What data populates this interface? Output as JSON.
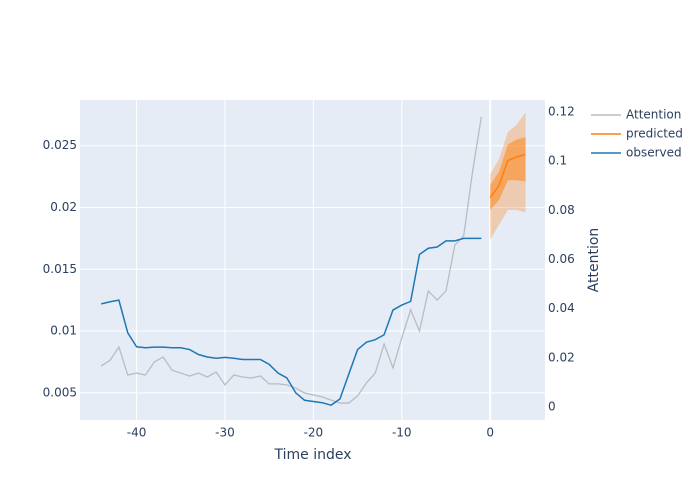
{
  "chart_data": {
    "type": "line",
    "xlabel": "Time index",
    "y2label": "Attention",
    "xlim": [
      -46.4,
      6.2
    ],
    "xticks": [
      -40,
      -30,
      -20,
      -10,
      0
    ],
    "ylim": [
      0.0028,
      0.0287
    ],
    "yticks": [
      0.005,
      0.01,
      0.015,
      0.02,
      0.025
    ],
    "y2lim": [
      -0.0053,
      0.1249
    ],
    "y2ticks": [
      0,
      0.02,
      0.04,
      0.06,
      0.08,
      0.1,
      0.12
    ],
    "grid": true,
    "legend": "outside-top-right",
    "series": [
      {
        "name": "Attention",
        "color": "#bbbcc2",
        "axis": "y2",
        "x": [
          -44,
          -43,
          -42,
          -41,
          -40,
          -39,
          -38,
          -37,
          -36,
          -35,
          -34,
          -33,
          -32,
          -31,
          -30,
          -29,
          -28,
          -27,
          -26,
          -25,
          -24,
          -23,
          -22,
          -21,
          -20,
          -19,
          -18,
          -17,
          -16,
          -15,
          -14,
          -13,
          -12,
          -11,
          -10,
          -9,
          -8,
          -7,
          -6,
          -5,
          -4,
          -3,
          -2,
          -1
        ],
        "values": [
          0.0167,
          0.019,
          0.0244,
          0.013,
          0.0138,
          0.013,
          0.0183,
          0.0203,
          0.015,
          0.0138,
          0.0126,
          0.0138,
          0.0122,
          0.0142,
          0.009,
          0.013,
          0.0122,
          0.0118,
          0.0126,
          0.0094,
          0.0094,
          0.009,
          0.0077,
          0.0057,
          0.0049,
          0.0041,
          0.0028,
          0.0016,
          0.0016,
          0.0045,
          0.0098,
          0.0138,
          0.0256,
          0.0159,
          0.0281,
          0.0395,
          0.0309,
          0.0472,
          0.0435,
          0.0472,
          0.0659,
          0.0696,
          0.0956,
          0.118
        ]
      },
      {
        "name": "predicted",
        "color": "#ff7f0e",
        "axis": "y",
        "x": [
          0,
          1,
          2,
          3,
          4
        ],
        "values": [
          0.0208,
          0.0218,
          0.0238,
          0.0241,
          0.0243
        ],
        "bands": [
          {
            "lower": [
              0.0174,
              0.0186,
              0.0198,
              0.0198,
              0.0196
            ],
            "upper": [
              0.0227,
              0.0239,
              0.0261,
              0.0267,
              0.0277
            ],
            "opacity": 0.3
          },
          {
            "lower": [
              0.0198,
              0.0206,
              0.0222,
              0.0222,
              0.0221
            ],
            "upper": [
              0.0218,
              0.0229,
              0.0251,
              0.0255,
              0.0257
            ],
            "opacity": 0.5
          }
        ]
      },
      {
        "name": "observed",
        "color": "#1f77b4",
        "axis": "y",
        "x": [
          -44,
          -43,
          -42,
          -41,
          -40,
          -39,
          -38,
          -37,
          -36,
          -35,
          -34,
          -33,
          -32,
          -31,
          -30,
          -29,
          -28,
          -27,
          -26,
          -25,
          -24,
          -23,
          -22,
          -21,
          -20,
          -19,
          -18,
          -17,
          -16,
          -15,
          -14,
          -13,
          -12,
          -11,
          -10,
          -9,
          -8,
          -7,
          -6,
          -5,
          -4,
          -3,
          -2,
          -1
        ],
        "values": [
          0.0122,
          0.01237,
          0.0125,
          0.00986,
          0.00873,
          0.00865,
          0.0087,
          0.0087,
          0.00865,
          0.00865,
          0.0085,
          0.0081,
          0.0079,
          0.0078,
          0.00787,
          0.0078,
          0.0077,
          0.0077,
          0.0077,
          0.0073,
          0.0066,
          0.0062,
          0.005,
          0.0044,
          0.0043,
          0.0042,
          0.004,
          0.0045,
          0.0065,
          0.0085,
          0.0091,
          0.0093,
          0.0097,
          0.0117,
          0.0121,
          0.0124,
          0.0162,
          0.0167,
          0.0168,
          0.0173,
          0.0173,
          0.0175,
          0.0175,
          0.0175
        ]
      }
    ]
  }
}
